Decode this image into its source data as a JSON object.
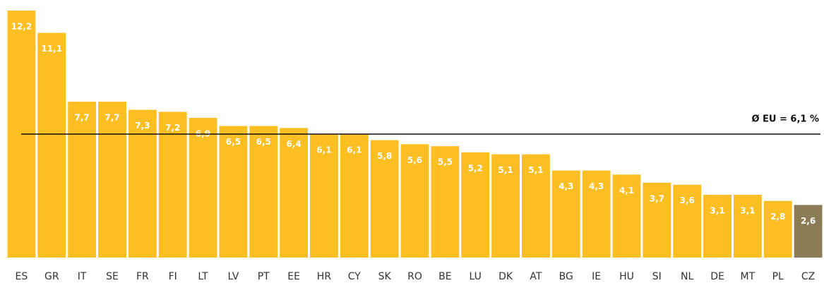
{
  "chart_data": {
    "type": "bar",
    "categories": [
      "ES",
      "GR",
      "IT",
      "SE",
      "FR",
      "FI",
      "LT",
      "LV",
      "PT",
      "EE",
      "HR",
      "CY",
      "SK",
      "RO",
      "BE",
      "LU",
      "DK",
      "AT",
      "BG",
      "IE",
      "HU",
      "SI",
      "NL",
      "DE",
      "MT",
      "PL",
      "CZ"
    ],
    "values": [
      12.2,
      11.1,
      7.7,
      7.7,
      7.3,
      7.2,
      6.9,
      6.5,
      6.5,
      6.4,
      6.1,
      6.1,
      5.8,
      5.6,
      5.5,
      5.2,
      5.1,
      5.1,
      4.3,
      4.3,
      4.1,
      3.7,
      3.6,
      3.1,
      3.1,
      2.8,
      2.6
    ],
    "value_labels": [
      "12,2",
      "11,1",
      "7,7",
      "7,7",
      "7,3",
      "7,2",
      "6,9",
      "6,5",
      "6,5",
      "6,4",
      "6,1",
      "6,1",
      "5,8",
      "5,6",
      "5,5",
      "5,2",
      "5,1",
      "5,1",
      "4,3",
      "4,3",
      "4,1",
      "3,7",
      "3,6",
      "3,1",
      "3,1",
      "2,8",
      "2,6"
    ],
    "colors": [
      "#fbbf24",
      "#fbbf24",
      "#fbbf24",
      "#fbbf24",
      "#fbbf24",
      "#fbbf24",
      "#fbbf24",
      "#fbbf24",
      "#fbbf24",
      "#fbbf24",
      "#fbbf24",
      "#fbbf24",
      "#fbbf24",
      "#fbbf24",
      "#fbbf24",
      "#fbbf24",
      "#fbbf24",
      "#fbbf24",
      "#fbbf24",
      "#fbbf24",
      "#fbbf24",
      "#fbbf24",
      "#fbbf24",
      "#fbbf24",
      "#fbbf24",
      "#fbbf24",
      "#8c7c56"
    ],
    "reference_line": {
      "value": 6.1,
      "label": "Ø EU = 6,1 %"
    }
  }
}
